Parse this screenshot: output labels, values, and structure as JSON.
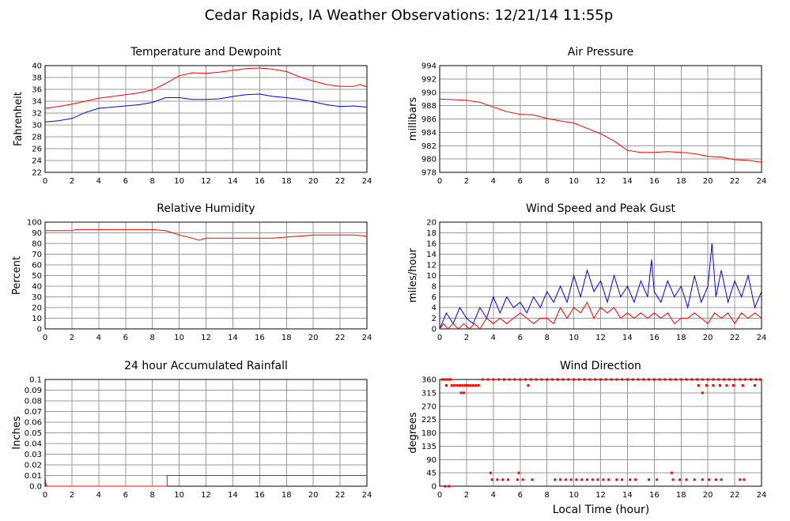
{
  "figure": {
    "title": "Cedar Rapids, IA Weather Observations: 12/21/14 11:55p",
    "xlabel_bottom": "Local Time (hour)"
  },
  "chart_data": [
    {
      "id": "temp",
      "type": "line",
      "title": "Temperature and Dewpoint",
      "xlabel": "",
      "ylabel": "Fahrenheit",
      "xlim": [
        0,
        24
      ],
      "ylim": [
        22,
        40
      ],
      "xticks": [
        0,
        2,
        4,
        6,
        8,
        10,
        12,
        14,
        16,
        18,
        20,
        22,
        24
      ],
      "yticks": [
        22,
        24,
        26,
        28,
        30,
        32,
        34,
        36,
        38,
        40
      ],
      "grid": true,
      "series": [
        {
          "color": "#ff0000",
          "x": [
            0,
            1,
            2,
            3,
            4,
            5,
            6,
            7,
            8,
            9,
            10,
            11,
            12,
            13,
            14,
            15,
            16,
            17,
            18,
            19,
            20,
            21,
            22,
            23,
            23.5,
            24
          ],
          "y": [
            32.8,
            33.1,
            33.5,
            34.0,
            34.5,
            34.8,
            35.1,
            35.4,
            35.9,
            37.0,
            38.3,
            38.8,
            38.7,
            38.9,
            39.2,
            39.5,
            39.6,
            39.4,
            39.0,
            38.1,
            37.4,
            36.8,
            36.5,
            36.5,
            36.8,
            36.4
          ]
        },
        {
          "color": "#0000ff",
          "x": [
            0,
            1,
            2,
            3,
            4,
            5,
            6,
            7,
            8,
            9,
            10,
            11,
            12,
            13,
            14,
            15,
            16,
            17,
            18,
            19,
            20,
            21,
            22,
            23,
            24
          ],
          "y": [
            30.5,
            30.7,
            31.1,
            32.1,
            32.8,
            33.0,
            33.2,
            33.4,
            33.8,
            34.6,
            34.6,
            34.3,
            34.3,
            34.4,
            34.8,
            35.1,
            35.2,
            34.8,
            34.6,
            34.3,
            33.9,
            33.4,
            33.1,
            33.2,
            33.0
          ]
        }
      ]
    },
    {
      "id": "pressure",
      "type": "line",
      "title": "Air Pressure",
      "xlabel": "",
      "ylabel": "millibars",
      "xlim": [
        0,
        24
      ],
      "ylim": [
        978,
        994
      ],
      "xticks": [
        0,
        2,
        4,
        6,
        8,
        10,
        12,
        14,
        16,
        18,
        20,
        22,
        24
      ],
      "yticks": [
        978,
        980,
        982,
        984,
        986,
        988,
        990,
        992,
        994
      ],
      "grid": true,
      "series": [
        {
          "color": "#ff0000",
          "x": [
            0,
            1,
            2,
            3,
            4,
            5,
            6,
            7,
            8,
            9,
            10,
            11,
            12,
            13,
            14,
            15,
            16,
            17,
            18,
            19,
            20,
            21,
            22,
            23,
            24
          ],
          "y": [
            989.0,
            988.9,
            988.8,
            988.5,
            987.8,
            987.1,
            986.7,
            986.6,
            986.1,
            985.7,
            985.4,
            984.6,
            983.8,
            982.7,
            981.3,
            981.0,
            981.0,
            981.1,
            981.0,
            980.8,
            980.4,
            980.3,
            979.9,
            979.8,
            979.5
          ]
        }
      ]
    },
    {
      "id": "humidity",
      "type": "line",
      "title": "Relative Humidity",
      "xlabel": "",
      "ylabel": "Percent",
      "xlim": [
        0,
        24
      ],
      "ylim": [
        0,
        100
      ],
      "xticks": [
        0,
        2,
        4,
        6,
        8,
        10,
        12,
        14,
        16,
        18,
        20,
        22,
        24
      ],
      "yticks": [
        0,
        10,
        20,
        30,
        40,
        50,
        60,
        70,
        80,
        90,
        100
      ],
      "grid": true,
      "series": [
        {
          "color": "#ff0000",
          "x": [
            0,
            1,
            2,
            2.3,
            3,
            4,
            5,
            6,
            7,
            8,
            9,
            10,
            11,
            11.5,
            12,
            13,
            14,
            15,
            16,
            17,
            18,
            19,
            20,
            21,
            22,
            23,
            24
          ],
          "y": [
            92,
            92,
            92,
            93,
            93,
            93,
            93,
            93,
            93,
            93,
            92,
            88,
            85,
            83,
            85,
            85,
            85,
            85,
            85,
            85,
            86,
            87,
            88,
            88,
            88,
            88,
            87
          ]
        }
      ]
    },
    {
      "id": "wind",
      "type": "line",
      "title": "Wind Speed and Peak Gust",
      "xlabel": "",
      "ylabel": "miles/hour",
      "xlim": [
        0,
        24
      ],
      "ylim": [
        0,
        20
      ],
      "xticks": [
        0,
        2,
        4,
        6,
        8,
        10,
        12,
        14,
        16,
        18,
        20,
        22,
        24
      ],
      "yticks": [
        0,
        2,
        4,
        6,
        8,
        10,
        12,
        14,
        16,
        18,
        20
      ],
      "grid": true,
      "series": [
        {
          "color": "#0000ff",
          "x": [
            0,
            0.5,
            1,
            1.5,
            2,
            2.5,
            3,
            3.5,
            4,
            4.5,
            5,
            5.5,
            6,
            6.5,
            7,
            7.5,
            8,
            8.5,
            9,
            9.5,
            10,
            10.5,
            11,
            11.5,
            12,
            12.5,
            13,
            13.5,
            14,
            14.5,
            15,
            15.5,
            15.8,
            16,
            16.5,
            17,
            17.5,
            18,
            18.5,
            19,
            19.5,
            20,
            20.3,
            20.6,
            21,
            21.5,
            22,
            22.5,
            23,
            23.5,
            24
          ],
          "y": [
            0,
            3,
            1,
            4,
            2,
            1,
            4,
            2,
            6,
            3,
            6,
            4,
            5,
            3,
            6,
            4,
            7,
            5,
            8,
            5,
            10,
            6,
            11,
            7,
            9,
            5,
            10,
            6,
            8,
            5,
            9,
            6,
            13,
            7,
            5,
            9,
            6,
            8,
            4,
            10,
            5,
            8,
            16,
            6,
            11,
            5,
            9,
            6,
            10,
            4,
            7
          ]
        },
        {
          "color": "#ff0000",
          "x": [
            0,
            0.3,
            0.6,
            1,
            1.4,
            1.8,
            2.2,
            2.6,
            3,
            3.5,
            4,
            4.5,
            5,
            5.5,
            6,
            6.5,
            7,
            7.5,
            8,
            8.5,
            9,
            9.5,
            10,
            10.5,
            11,
            11.5,
            12,
            12.5,
            13,
            13.5,
            14,
            14.5,
            15,
            15.5,
            16,
            16.5,
            17,
            17.5,
            18,
            18.5,
            19,
            19.5,
            20,
            20.5,
            21,
            21.5,
            22,
            22.5,
            23,
            23.5,
            24
          ],
          "y": [
            0,
            1,
            0,
            1,
            0,
            1,
            0,
            1,
            0,
            2,
            1,
            2,
            1,
            2,
            3,
            2,
            1,
            2,
            2,
            1,
            4,
            2,
            4,
            3,
            5,
            2,
            4,
            3,
            4,
            2,
            3,
            2,
            3,
            2,
            3,
            2,
            3,
            1,
            2,
            2,
            3,
            2,
            1,
            3,
            2,
            3,
            1,
            3,
            2,
            3,
            2
          ]
        }
      ]
    },
    {
      "id": "rain",
      "type": "line",
      "title": "24 hour Accumulated Rainfall",
      "xlabel": "",
      "ylabel": "Inches",
      "xlim": [
        0,
        24
      ],
      "ylim": [
        0,
        0.1
      ],
      "xticks": [
        0,
        2,
        4,
        6,
        8,
        10,
        12,
        14,
        16,
        18,
        20,
        22,
        24
      ],
      "yticks": [
        0,
        0.01,
        0.02,
        0.03,
        0.04,
        0.05,
        0.06,
        0.07,
        0.08,
        0.09,
        0.1
      ],
      "ytick_labels": [
        "0.0",
        "0.01",
        "0.02",
        "0.03",
        "0.04",
        "0.05",
        "0.06",
        "0.07",
        "0.08",
        "0.09",
        "0.1"
      ],
      "grid": true,
      "series": [
        {
          "color": "#ff0000",
          "x": [
            0,
            0.05,
            0.1,
            9.1,
            9.1,
            24
          ],
          "y": [
            0.01,
            0.003,
            0,
            0,
            0.01,
            0.01
          ]
        }
      ]
    },
    {
      "id": "direction",
      "type": "scatter",
      "title": "Wind Direction",
      "xlabel": "Local Time (hour)",
      "ylabel": "degrees",
      "xlim": [
        0,
        24
      ],
      "ylim": [
        0,
        360
      ],
      "xticks": [
        0,
        2,
        4,
        6,
        8,
        10,
        12,
        14,
        16,
        18,
        20,
        22,
        24
      ],
      "yticks": [
        0,
        45,
        90,
        135,
        180,
        225,
        270,
        315,
        360
      ],
      "grid": true,
      "series": [
        {
          "color": "#ff0000",
          "x": [
            0.2,
            0.4,
            0.6,
            0.8,
            0.5,
            0.9,
            1.1,
            1.3,
            1.5,
            1.7,
            1.9,
            2.1,
            2.3,
            2.5,
            2.7,
            2.9,
            1.6,
            1.8,
            3.2,
            3.6,
            4.0,
            4.4,
            4.8,
            5.2,
            5.6,
            6.0,
            6.4,
            6.8,
            7.2,
            7.6,
            8.0,
            8.4,
            8.8,
            9.2,
            9.6,
            10.0,
            10.4,
            10.8,
            11.2,
            11.6,
            12.0,
            12.4,
            12.8,
            13.2,
            13.6,
            14.0,
            14.4,
            14.8,
            15.2,
            15.6,
            16.0,
            16.4,
            16.8,
            17.2,
            17.6,
            18.0,
            18.4,
            18.8,
            19.2,
            19.6,
            20.0,
            20.4,
            20.8,
            21.2,
            21.6,
            22.0,
            22.4,
            22.8,
            23.2,
            23.6,
            23.9,
            6.6,
            19.3,
            19.9,
            20.4,
            20.9,
            21.4,
            21.9,
            22.6,
            23.5,
            19.6,
            0.4,
            0.7,
            3.9,
            4.3,
            4.7,
            5.1,
            5.8,
            6.2,
            6.9,
            8.6,
            9.0,
            9.4,
            9.8,
            10.2,
            10.6,
            11.0,
            11.4,
            11.8,
            12.2,
            12.6,
            13.2,
            13.6,
            14.2,
            14.6,
            15.6,
            16.2,
            17.4,
            17.9,
            18.4,
            19.0,
            19.6,
            20.1,
            20.6,
            21.0,
            22.4,
            22.7,
            3.8,
            5.9,
            17.3
          ],
          "y": [
            360,
            360,
            360,
            360,
            340,
            340,
            340,
            340,
            340,
            340,
            340,
            340,
            340,
            340,
            340,
            340,
            315,
            315,
            360,
            360,
            360,
            360,
            360,
            360,
            360,
            360,
            360,
            360,
            360,
            360,
            360,
            360,
            360,
            360,
            360,
            360,
            360,
            360,
            360,
            360,
            360,
            360,
            360,
            360,
            360,
            360,
            360,
            360,
            360,
            360,
            360,
            360,
            360,
            360,
            360,
            360,
            360,
            360,
            360,
            360,
            360,
            360,
            360,
            360,
            360,
            360,
            360,
            360,
            360,
            360,
            360,
            340,
            340,
            340,
            340,
            340,
            340,
            340,
            340,
            340,
            315,
            0,
            0,
            22,
            22,
            22,
            22,
            22,
            22,
            22,
            22,
            22,
            22,
            22,
            22,
            22,
            22,
            22,
            22,
            22,
            22,
            22,
            22,
            22,
            22,
            22,
            22,
            22,
            22,
            22,
            22,
            22,
            22,
            22,
            22,
            22,
            22,
            45,
            45,
            45
          ]
        }
      ]
    }
  ]
}
